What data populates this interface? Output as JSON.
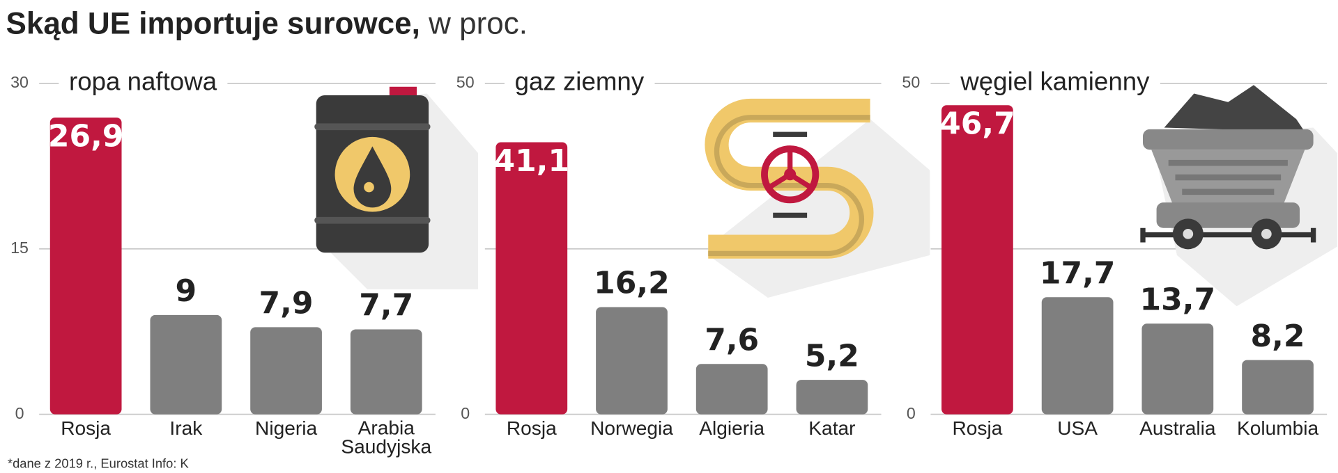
{
  "header": {
    "title": "Skąd UE importuje surowce,",
    "unit": "w proc."
  },
  "footer": {
    "source": "*dane z 2019 r., Eurostat  Info: K"
  },
  "chart_data": [
    {
      "type": "bar",
      "title": "ropa naftowa",
      "categories": [
        "Rosja",
        "Irak",
        "Nigeria",
        "Arabia Saudyjska"
      ],
      "values": [
        26.9,
        9,
        7.9,
        7.7
      ],
      "value_labels": [
        "26,9",
        "9",
        "7,9",
        "7,7"
      ],
      "colors": [
        "#c0183f",
        "#7f7f7f",
        "#7f7f7f",
        "#7f7f7f"
      ],
      "ylim": [
        0,
        30
      ],
      "yticks": [
        0,
        15,
        30
      ],
      "grid": true
    },
    {
      "type": "bar",
      "title": "gaz ziemny",
      "categories": [
        "Rosja",
        "Norwegia",
        "Algieria",
        "Katar"
      ],
      "values": [
        41.1,
        16.2,
        7.6,
        5.2
      ],
      "value_labels": [
        "41,1",
        "16,2",
        "7,6",
        "5,2"
      ],
      "colors": [
        "#c0183f",
        "#7f7f7f",
        "#7f7f7f",
        "#7f7f7f"
      ],
      "ylim": [
        0,
        50
      ],
      "yticks": [
        0,
        25,
        50
      ],
      "grid": true
    },
    {
      "type": "bar",
      "title": "węgiel kamienny",
      "categories": [
        "Rosja",
        "USA",
        "Australia",
        "Kolumbia"
      ],
      "values": [
        46.7,
        17.7,
        13.7,
        8.2
      ],
      "value_labels": [
        "46,7",
        "17,7",
        "13,7",
        "8,2"
      ],
      "colors": [
        "#c0183f",
        "#7f7f7f",
        "#7f7f7f",
        "#7f7f7f"
      ],
      "ylim": [
        0,
        50
      ],
      "yticks": [
        0,
        25,
        50
      ],
      "grid": true
    }
  ]
}
